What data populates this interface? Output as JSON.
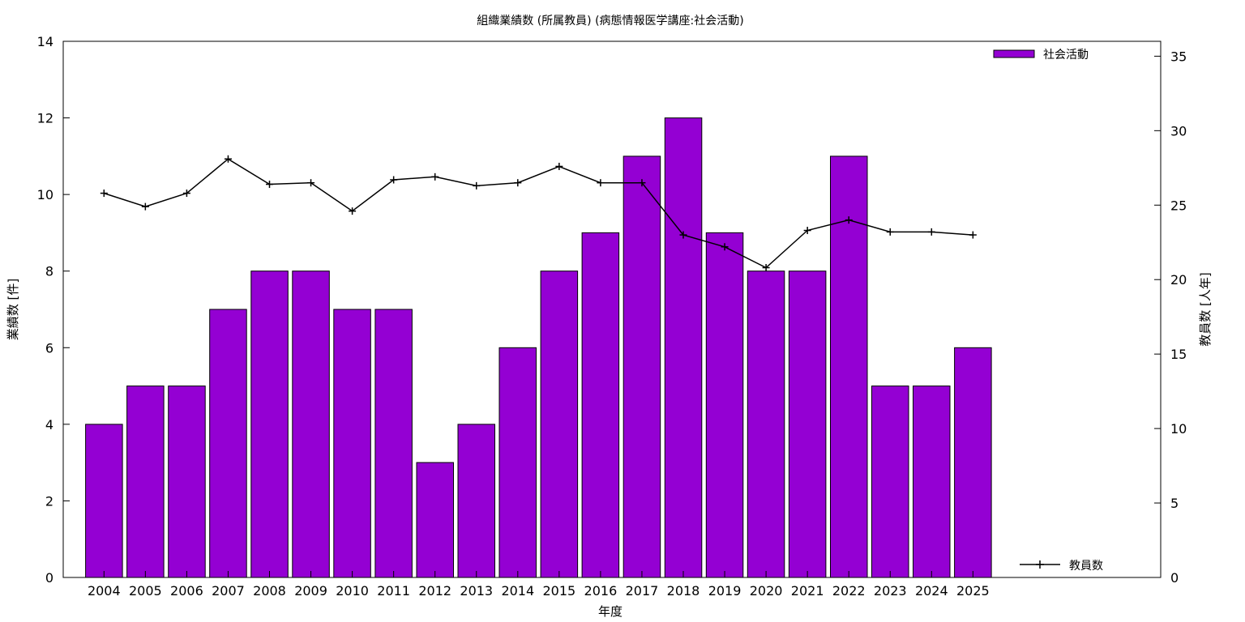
{
  "chart_data": {
    "type": "bar",
    "title": "組織業績数 (所属教員) (病態情報医学講座:社会活動)",
    "xlabel": "年度",
    "ylabel": "業績数 [件]",
    "y2label": "教員数 [人年]",
    "categories": [
      "2004",
      "2005",
      "2006",
      "2007",
      "2008",
      "2009",
      "2010",
      "2011",
      "2012",
      "2013",
      "2014",
      "2015",
      "2016",
      "2017",
      "2018",
      "2019",
      "2020",
      "2021",
      "2022",
      "2023",
      "2024",
      "2025"
    ],
    "ylim": [
      0,
      14
    ],
    "y2lim": [
      0,
      36
    ],
    "yticks": [
      0,
      2,
      4,
      6,
      8,
      10,
      12,
      14
    ],
    "y2ticks": [
      0,
      5,
      10,
      15,
      20,
      25,
      30,
      35
    ],
    "legend_position": "top-right / bottom-right",
    "grid": false,
    "series": [
      {
        "name": "社会活動",
        "type": "bar",
        "axis": "left",
        "color": "#9400d3",
        "values": [
          4,
          5,
          5,
          7,
          8,
          8,
          7,
          7,
          3,
          4,
          6,
          8,
          9,
          11,
          12,
          9,
          8,
          8,
          11,
          5,
          5,
          6
        ]
      },
      {
        "name": "教員数",
        "type": "line",
        "axis": "right",
        "color": "#000000",
        "values": [
          25.8,
          24.9,
          25.8,
          28.1,
          26.4,
          26.5,
          24.6,
          26.7,
          26.9,
          26.3,
          26.5,
          27.6,
          26.5,
          26.5,
          23.0,
          22.2,
          20.8,
          23.3,
          24.0,
          23.2,
          23.2,
          23.0
        ]
      }
    ]
  }
}
